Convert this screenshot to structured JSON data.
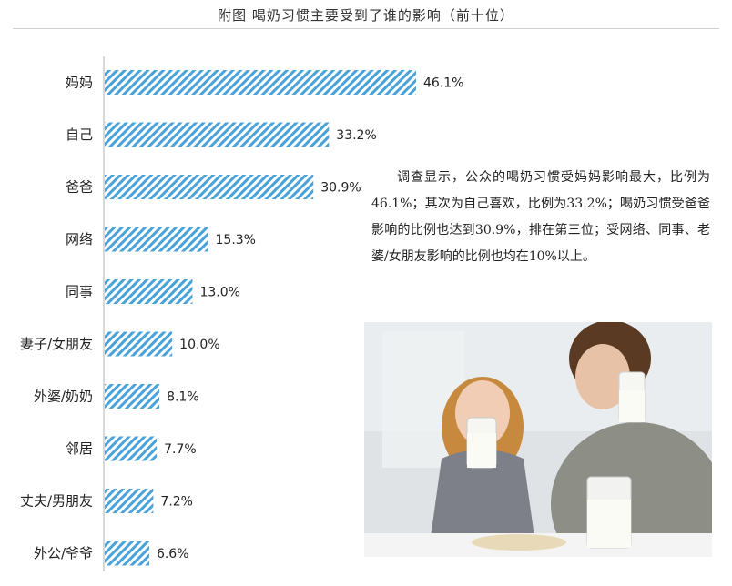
{
  "chart_data": {
    "type": "bar",
    "orientation": "horizontal",
    "title": "附图  喝奶习惯主要受到了谁的影响（前十位）",
    "categories": [
      "妈妈",
      "自己",
      "爸爸",
      "网络",
      "同事",
      "妻子/女朋友",
      "外婆/奶奶",
      "邻居",
      "丈夫/男朋友",
      "外公/爷爷"
    ],
    "values": [
      46.1,
      33.2,
      30.9,
      15.3,
      13.0,
      10.0,
      8.1,
      7.7,
      7.2,
      6.6
    ],
    "value_labels": [
      "46.1%",
      "33.2%",
      "30.9%",
      "15.3%",
      "13.0%",
      "10.0%",
      "8.1%",
      "7.7%",
      "7.2%",
      "6.6%"
    ],
    "xlim": [
      0,
      50
    ],
    "grid": false,
    "bar_fill": "diagonal-stripes",
    "colors": {
      "bar_stripe": "#4aa3d8",
      "bar_bg": "#ffffff",
      "axis": "#b0b0b0"
    }
  },
  "note": {
    "text": "调查显示，公众的喝奶习惯受妈妈影响最大，比例为46.1%；其次为自己喜欢，比例为33.2%；喝奶习惯受爸爸影响的比例也达到30.9%，排在第三位；受网络、同事、老婆/女朋友影响的比例也均在10%以上。"
  },
  "photo": {
    "colors": {
      "bg": "#dfe3e6",
      "table": "#f4f4f4",
      "milk": "#fbfbf6"
    }
  }
}
